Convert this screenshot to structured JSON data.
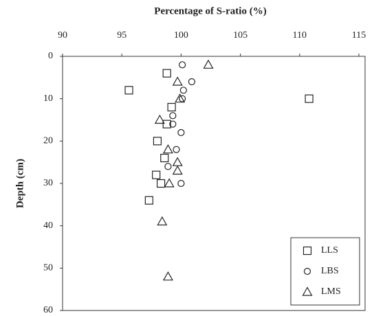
{
  "chart_data": {
    "type": "scatter",
    "title": "Percentage of S-ratio (%)",
    "y_label": "Depth (cm)",
    "xlim": [
      90,
      115
    ],
    "xticks": [
      90,
      95,
      100,
      105,
      110,
      115
    ],
    "ylim": [
      0,
      60
    ],
    "yticks": [
      0,
      10,
      20,
      30,
      40,
      50,
      60
    ],
    "y_inverted": true,
    "x_axis_position": "top",
    "legend": "bottom-right",
    "series": [
      {
        "name": "LLS",
        "color": "#222222",
        "marker": "square",
        "x": [
          98.8,
          95.6,
          110.8,
          99.2,
          98.8,
          98.0,
          98.6,
          97.9,
          98.3,
          97.3
        ],
        "values": [
          4,
          8,
          10,
          12,
          16,
          20,
          24,
          28,
          30,
          34
        ]
      },
      {
        "name": "LBS",
        "color": "#222222",
        "marker": "circle",
        "x": [
          100.1,
          100.9,
          100.2,
          100.1,
          99.3,
          99.3,
          100.0,
          99.6,
          98.9,
          100.0
        ],
        "values": [
          2,
          6,
          8,
          10,
          14,
          16,
          18,
          22,
          26,
          30
        ]
      },
      {
        "name": "LMS",
        "color": "#222222",
        "marker": "triangle",
        "x": [
          102.3,
          99.7,
          99.9,
          98.2,
          98.9,
          99.7,
          99.7,
          99.0,
          98.4,
          98.9
        ],
        "values": [
          2,
          6,
          10,
          15,
          22,
          25,
          27,
          30,
          39,
          52
        ]
      }
    ]
  }
}
